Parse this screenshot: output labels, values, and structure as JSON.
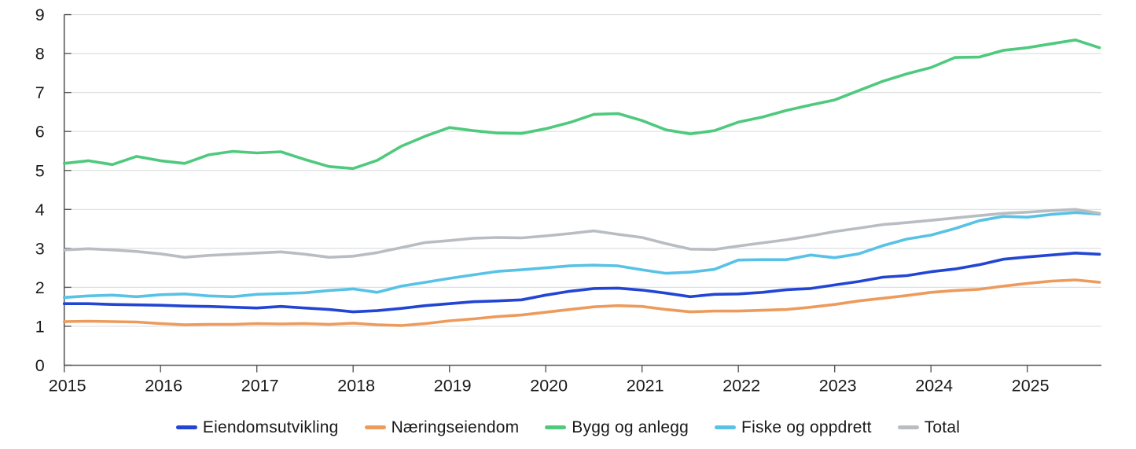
{
  "colors": {
    "background": "#ffffff",
    "axis": "#595959",
    "grid": "#dddfe1",
    "text": "#1a1a1a"
  },
  "chart_data": {
    "type": "line",
    "title": "",
    "xlabel": "",
    "ylabel": "",
    "ylim": [
      0,
      9
    ],
    "xlim": [
      2015,
      2025.83
    ],
    "grid": "horizontal",
    "legend_position": "bottom",
    "y_ticks": [
      0,
      1,
      2,
      3,
      4,
      5,
      6,
      7,
      8,
      9
    ],
    "x_label_ticks": [
      2015,
      2016,
      2017,
      2018,
      2019,
      2020,
      2021,
      2022,
      2023,
      2024,
      2025
    ],
    "x": [
      2015.0,
      2015.25,
      2015.5,
      2015.75,
      2016.0,
      2016.25,
      2016.5,
      2016.75,
      2017.0,
      2017.25,
      2017.5,
      2017.75,
      2018.0,
      2018.25,
      2018.5,
      2018.75,
      2019.0,
      2019.25,
      2019.5,
      2019.75,
      2020.0,
      2020.25,
      2020.5,
      2020.75,
      2021.0,
      2021.25,
      2021.5,
      2021.75,
      2022.0,
      2022.25,
      2022.5,
      2022.75,
      2023.0,
      2023.25,
      2023.5,
      2023.75,
      2024.0,
      2024.25,
      2024.5,
      2024.75,
      2025.0,
      2025.25,
      2025.5,
      2025.75
    ],
    "series": [
      {
        "name": "Eiendomsutvikling",
        "color": "#2245d3",
        "values": [
          1.58,
          1.58,
          1.56,
          1.55,
          1.54,
          1.52,
          1.51,
          1.49,
          1.47,
          1.51,
          1.47,
          1.43,
          1.37,
          1.4,
          1.46,
          1.53,
          1.58,
          1.63,
          1.65,
          1.68,
          1.8,
          1.9,
          1.97,
          1.98,
          1.93,
          1.85,
          1.76,
          1.82,
          1.83,
          1.87,
          1.94,
          1.97,
          2.06,
          2.15,
          2.26,
          2.3,
          2.4,
          2.47,
          2.58,
          2.72,
          2.78,
          2.83,
          2.88,
          2.85
        ]
      },
      {
        "name": "Næringseiendom",
        "color": "#ec9b5c",
        "values": [
          1.12,
          1.13,
          1.12,
          1.11,
          1.07,
          1.04,
          1.05,
          1.05,
          1.07,
          1.06,
          1.07,
          1.05,
          1.08,
          1.04,
          1.02,
          1.07,
          1.14,
          1.19,
          1.25,
          1.29,
          1.36,
          1.43,
          1.5,
          1.53,
          1.51,
          1.43,
          1.37,
          1.39,
          1.39,
          1.41,
          1.43,
          1.49,
          1.56,
          1.65,
          1.72,
          1.79,
          1.87,
          1.92,
          1.95,
          2.03,
          2.1,
          2.16,
          2.19,
          2.13
        ]
      },
      {
        "name": "Bygg og anlegg",
        "color": "#4ec97d",
        "values": [
          5.18,
          5.25,
          5.15,
          5.36,
          5.25,
          5.18,
          5.4,
          5.49,
          5.45,
          5.48,
          5.28,
          5.1,
          5.05,
          5.26,
          5.62,
          5.88,
          6.1,
          6.02,
          5.96,
          5.95,
          6.07,
          6.23,
          6.44,
          6.46,
          6.28,
          6.04,
          5.94,
          6.02,
          6.24,
          6.37,
          6.54,
          6.68,
          6.81,
          7.05,
          7.29,
          7.48,
          7.64,
          7.9,
          7.91,
          8.08,
          8.15,
          8.25,
          8.35,
          8.15
        ]
      },
      {
        "name": "Fiske og oppdrett",
        "color": "#58c2e6",
        "values": [
          1.74,
          1.78,
          1.8,
          1.76,
          1.81,
          1.83,
          1.78,
          1.76,
          1.82,
          1.84,
          1.86,
          1.92,
          1.96,
          1.87,
          2.03,
          2.13,
          2.23,
          2.32,
          2.41,
          2.45,
          2.5,
          2.55,
          2.57,
          2.55,
          2.45,
          2.36,
          2.39,
          2.46,
          2.7,
          2.71,
          2.71,
          2.83,
          2.76,
          2.86,
          3.07,
          3.24,
          3.34,
          3.51,
          3.71,
          3.82,
          3.8,
          3.87,
          3.92,
          3.88
        ]
      },
      {
        "name": "Total",
        "color": "#b9bdc2",
        "values": [
          2.96,
          2.99,
          2.96,
          2.92,
          2.86,
          2.77,
          2.82,
          2.85,
          2.88,
          2.91,
          2.85,
          2.77,
          2.8,
          2.89,
          3.02,
          3.15,
          3.2,
          3.26,
          3.28,
          3.27,
          3.32,
          3.38,
          3.45,
          3.36,
          3.28,
          3.12,
          2.98,
          2.97,
          3.06,
          3.14,
          3.22,
          3.32,
          3.43,
          3.52,
          3.61,
          3.66,
          3.72,
          3.78,
          3.84,
          3.9,
          3.93,
          3.97,
          4.0,
          3.9
        ]
      }
    ]
  }
}
